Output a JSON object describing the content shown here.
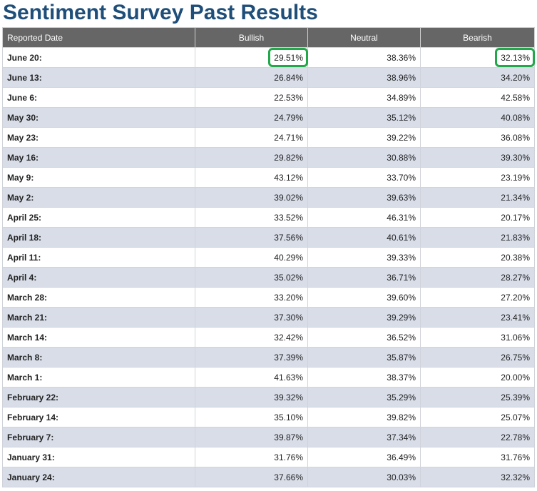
{
  "title": "Sentiment Survey Past Results",
  "columns": {
    "date": "Reported Date",
    "bullish": "Bullish",
    "neutral": "Neutral",
    "bearish": "Bearish"
  },
  "highlight_color": "#22a84a",
  "highlighted_cells": [
    "June 20: Bullish",
    "June 20: Bearish"
  ],
  "rows": [
    {
      "date": "June 20:",
      "bullish": "29.51%",
      "neutral": "38.36%",
      "bearish": "32.13%"
    },
    {
      "date": "June 13:",
      "bullish": "26.84%",
      "neutral": "38.96%",
      "bearish": "34.20%"
    },
    {
      "date": "June 6:",
      "bullish": "22.53%",
      "neutral": "34.89%",
      "bearish": "42.58%"
    },
    {
      "date": "May 30:",
      "bullish": "24.79%",
      "neutral": "35.12%",
      "bearish": "40.08%"
    },
    {
      "date": "May 23:",
      "bullish": "24.71%",
      "neutral": "39.22%",
      "bearish": "36.08%"
    },
    {
      "date": "May 16:",
      "bullish": "29.82%",
      "neutral": "30.88%",
      "bearish": "39.30%"
    },
    {
      "date": "May 9:",
      "bullish": "43.12%",
      "neutral": "33.70%",
      "bearish": "23.19%"
    },
    {
      "date": "May 2:",
      "bullish": "39.02%",
      "neutral": "39.63%",
      "bearish": "21.34%"
    },
    {
      "date": "April 25:",
      "bullish": "33.52%",
      "neutral": "46.31%",
      "bearish": "20.17%"
    },
    {
      "date": "April 18:",
      "bullish": "37.56%",
      "neutral": "40.61%",
      "bearish": "21.83%"
    },
    {
      "date": "April 11:",
      "bullish": "40.29%",
      "neutral": "39.33%",
      "bearish": "20.38%"
    },
    {
      "date": "April 4:",
      "bullish": "35.02%",
      "neutral": "36.71%",
      "bearish": "28.27%"
    },
    {
      "date": "March 28:",
      "bullish": "33.20%",
      "neutral": "39.60%",
      "bearish": "27.20%"
    },
    {
      "date": "March 21:",
      "bullish": "37.30%",
      "neutral": "39.29%",
      "bearish": "23.41%"
    },
    {
      "date": "March 14:",
      "bullish": "32.42%",
      "neutral": "36.52%",
      "bearish": "31.06%"
    },
    {
      "date": "March 8:",
      "bullish": "37.39%",
      "neutral": "35.87%",
      "bearish": "26.75%"
    },
    {
      "date": "March 1:",
      "bullish": "41.63%",
      "neutral": "38.37%",
      "bearish": "20.00%"
    },
    {
      "date": "February 22:",
      "bullish": "39.32%",
      "neutral": "35.29%",
      "bearish": "25.39%"
    },
    {
      "date": "February 14:",
      "bullish": "35.10%",
      "neutral": "39.82%",
      "bearish": "25.07%"
    },
    {
      "date": "February 7:",
      "bullish": "39.87%",
      "neutral": "37.34%",
      "bearish": "22.78%"
    },
    {
      "date": "January 31:",
      "bullish": "31.76%",
      "neutral": "36.49%",
      "bearish": "31.76%"
    },
    {
      "date": "January 24:",
      "bullish": "37.66%",
      "neutral": "30.03%",
      "bearish": "32.32%"
    }
  ]
}
